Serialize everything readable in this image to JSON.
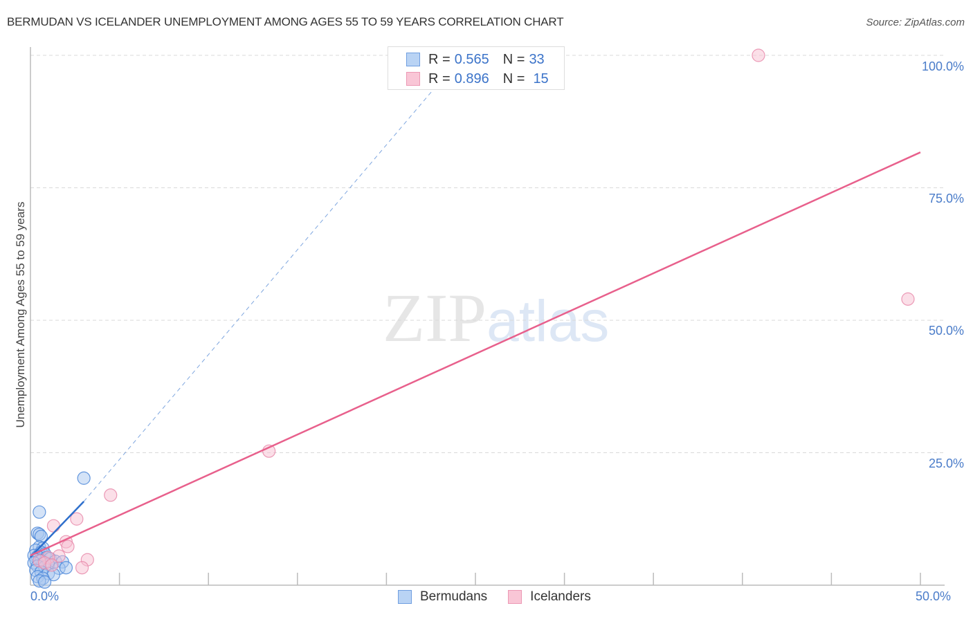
{
  "header": {
    "title": "BERMUDAN VS ICELANDER UNEMPLOYMENT AMONG AGES 55 TO 59 YEARS CORRELATION CHART",
    "source": "Source: ZipAtlas.com"
  },
  "legend": {
    "rows": [
      {
        "r_label": "R =",
        "r_value": "0.565",
        "n_label": "N =",
        "n_value": "33"
      },
      {
        "r_label": "R =",
        "r_value": "0.896",
        "n_label": "N =",
        "n_value": "15"
      }
    ],
    "series": [
      {
        "name": "Bermudans"
      },
      {
        "name": "Icelanders"
      }
    ]
  },
  "axes": {
    "y_label": "Unemployment Among Ages 55 to 59 years",
    "y_ticks": [
      "100.0%",
      "75.0%",
      "50.0%",
      "25.0%"
    ],
    "x_ticks": [
      "0.0%",
      "50.0%"
    ]
  },
  "watermark": {
    "zip": "ZIP",
    "atlas": "atlas"
  },
  "colors": {
    "bermudans_fill": "#a9c8f0",
    "bermudans_stroke": "#4a86d8",
    "bermudans_line": "#2e6fcc",
    "icelanders_fill": "#f8c0d2",
    "icelanders_stroke": "#e88aaa",
    "icelanders_line": "#e8608c",
    "tick_text": "#4a7cc9"
  },
  "chart_data": {
    "type": "scatter",
    "title": "BERMUDAN VS ICELANDER UNEMPLOYMENT AMONG AGES 55 TO 59 YEARS CORRELATION CHART",
    "xlabel": "",
    "ylabel": "Unemployment Among Ages 55 to 59 years",
    "xlim": [
      0,
      50
    ],
    "ylim": [
      0,
      100
    ],
    "x_tick_labels": [
      "0.0%",
      "50.0%"
    ],
    "y_tick_labels": [
      "25.0%",
      "50.0%",
      "75.0%",
      "100.0%"
    ],
    "grid": "horizontal dashed at 25/50/75/100",
    "legend_position": "top-center (stats) and bottom-center (series)",
    "series": [
      {
        "name": "Bermudans",
        "R": 0.565,
        "N": 33,
        "points": [
          [
            3.0,
            20.2
          ],
          [
            0.5,
            13.8
          ],
          [
            0.4,
            9.8
          ],
          [
            0.5,
            9.6
          ],
          [
            0.6,
            9.2
          ],
          [
            0.5,
            7.2
          ],
          [
            0.7,
            7.0
          ],
          [
            0.3,
            6.6
          ],
          [
            0.6,
            6.2
          ],
          [
            0.8,
            5.9
          ],
          [
            0.2,
            5.6
          ],
          [
            0.4,
            5.4
          ],
          [
            0.9,
            5.2
          ],
          [
            1.1,
            5.0
          ],
          [
            0.3,
            4.8
          ],
          [
            0.6,
            4.6
          ],
          [
            1.4,
            4.5
          ],
          [
            1.8,
            4.4
          ],
          [
            0.2,
            4.2
          ],
          [
            0.7,
            4.0
          ],
          [
            1.0,
            3.9
          ],
          [
            0.4,
            3.6
          ],
          [
            0.8,
            3.4
          ],
          [
            1.6,
            3.2
          ],
          [
            2.0,
            3.3
          ],
          [
            0.3,
            2.8
          ],
          [
            0.6,
            2.5
          ],
          [
            1.0,
            2.2
          ],
          [
            1.3,
            2.0
          ],
          [
            0.4,
            1.6
          ],
          [
            0.7,
            1.3
          ],
          [
            0.5,
            0.8
          ],
          [
            0.8,
            0.6
          ]
        ],
        "trendline": {
          "x0": 0,
          "y0": 5.3,
          "x1": 3.0,
          "y1": 15.8,
          "extended_to": [
            22.6,
            93.4
          ],
          "style_extension": "dashed"
        }
      },
      {
        "name": "Icelanders",
        "R": 0.896,
        "N": 15,
        "points": [
          [
            40.9,
            100.0
          ],
          [
            49.3,
            54.0
          ],
          [
            13.4,
            25.3
          ],
          [
            4.5,
            17.0
          ],
          [
            2.6,
            12.5
          ],
          [
            1.3,
            11.2
          ],
          [
            2.0,
            8.2
          ],
          [
            2.1,
            7.3
          ],
          [
            1.6,
            5.5
          ],
          [
            3.2,
            4.8
          ],
          [
            2.9,
            3.3
          ],
          [
            1.0,
            5.2
          ],
          [
            0.5,
            4.6
          ],
          [
            0.8,
            4.2
          ],
          [
            1.2,
            3.8
          ]
        ],
        "trendline": {
          "x0": 0,
          "y0": 5.6,
          "x1": 50,
          "y1": 81.7
        }
      }
    ]
  }
}
